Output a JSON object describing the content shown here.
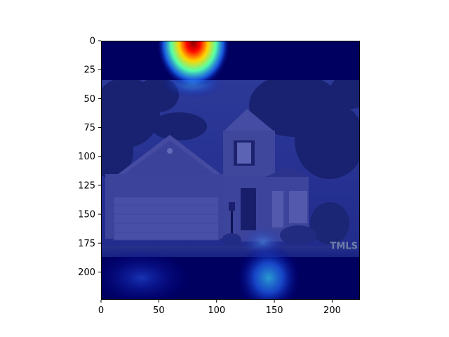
{
  "chart_data": {
    "type": "heatmap",
    "title": "",
    "xlabel": "",
    "ylabel": "",
    "xlim": [
      0,
      224
    ],
    "ylim": [
      224,
      0
    ],
    "x_ticks": [
      0,
      50,
      100,
      150,
      200
    ],
    "y_ticks": [
      0,
      25,
      50,
      75,
      100,
      125,
      150,
      175,
      200
    ],
    "x_tick_labels": [
      "0",
      "50",
      "100",
      "150",
      "200"
    ],
    "y_tick_labels": [
      "0",
      "25",
      "50",
      "75",
      "100",
      "125",
      "150",
      "175",
      "200"
    ],
    "colormap": "jet",
    "background_image": "attention heatmap overlay on a photo of a two-story house with a garage and trees",
    "photo_region_y": [
      34,
      187
    ],
    "hotspots": [
      {
        "x": 80,
        "y": 10,
        "intensity": 1.0
      },
      {
        "x": 145,
        "y": 205,
        "intensity": 0.4
      }
    ],
    "watermark": "TMLS",
    "grid": false
  }
}
